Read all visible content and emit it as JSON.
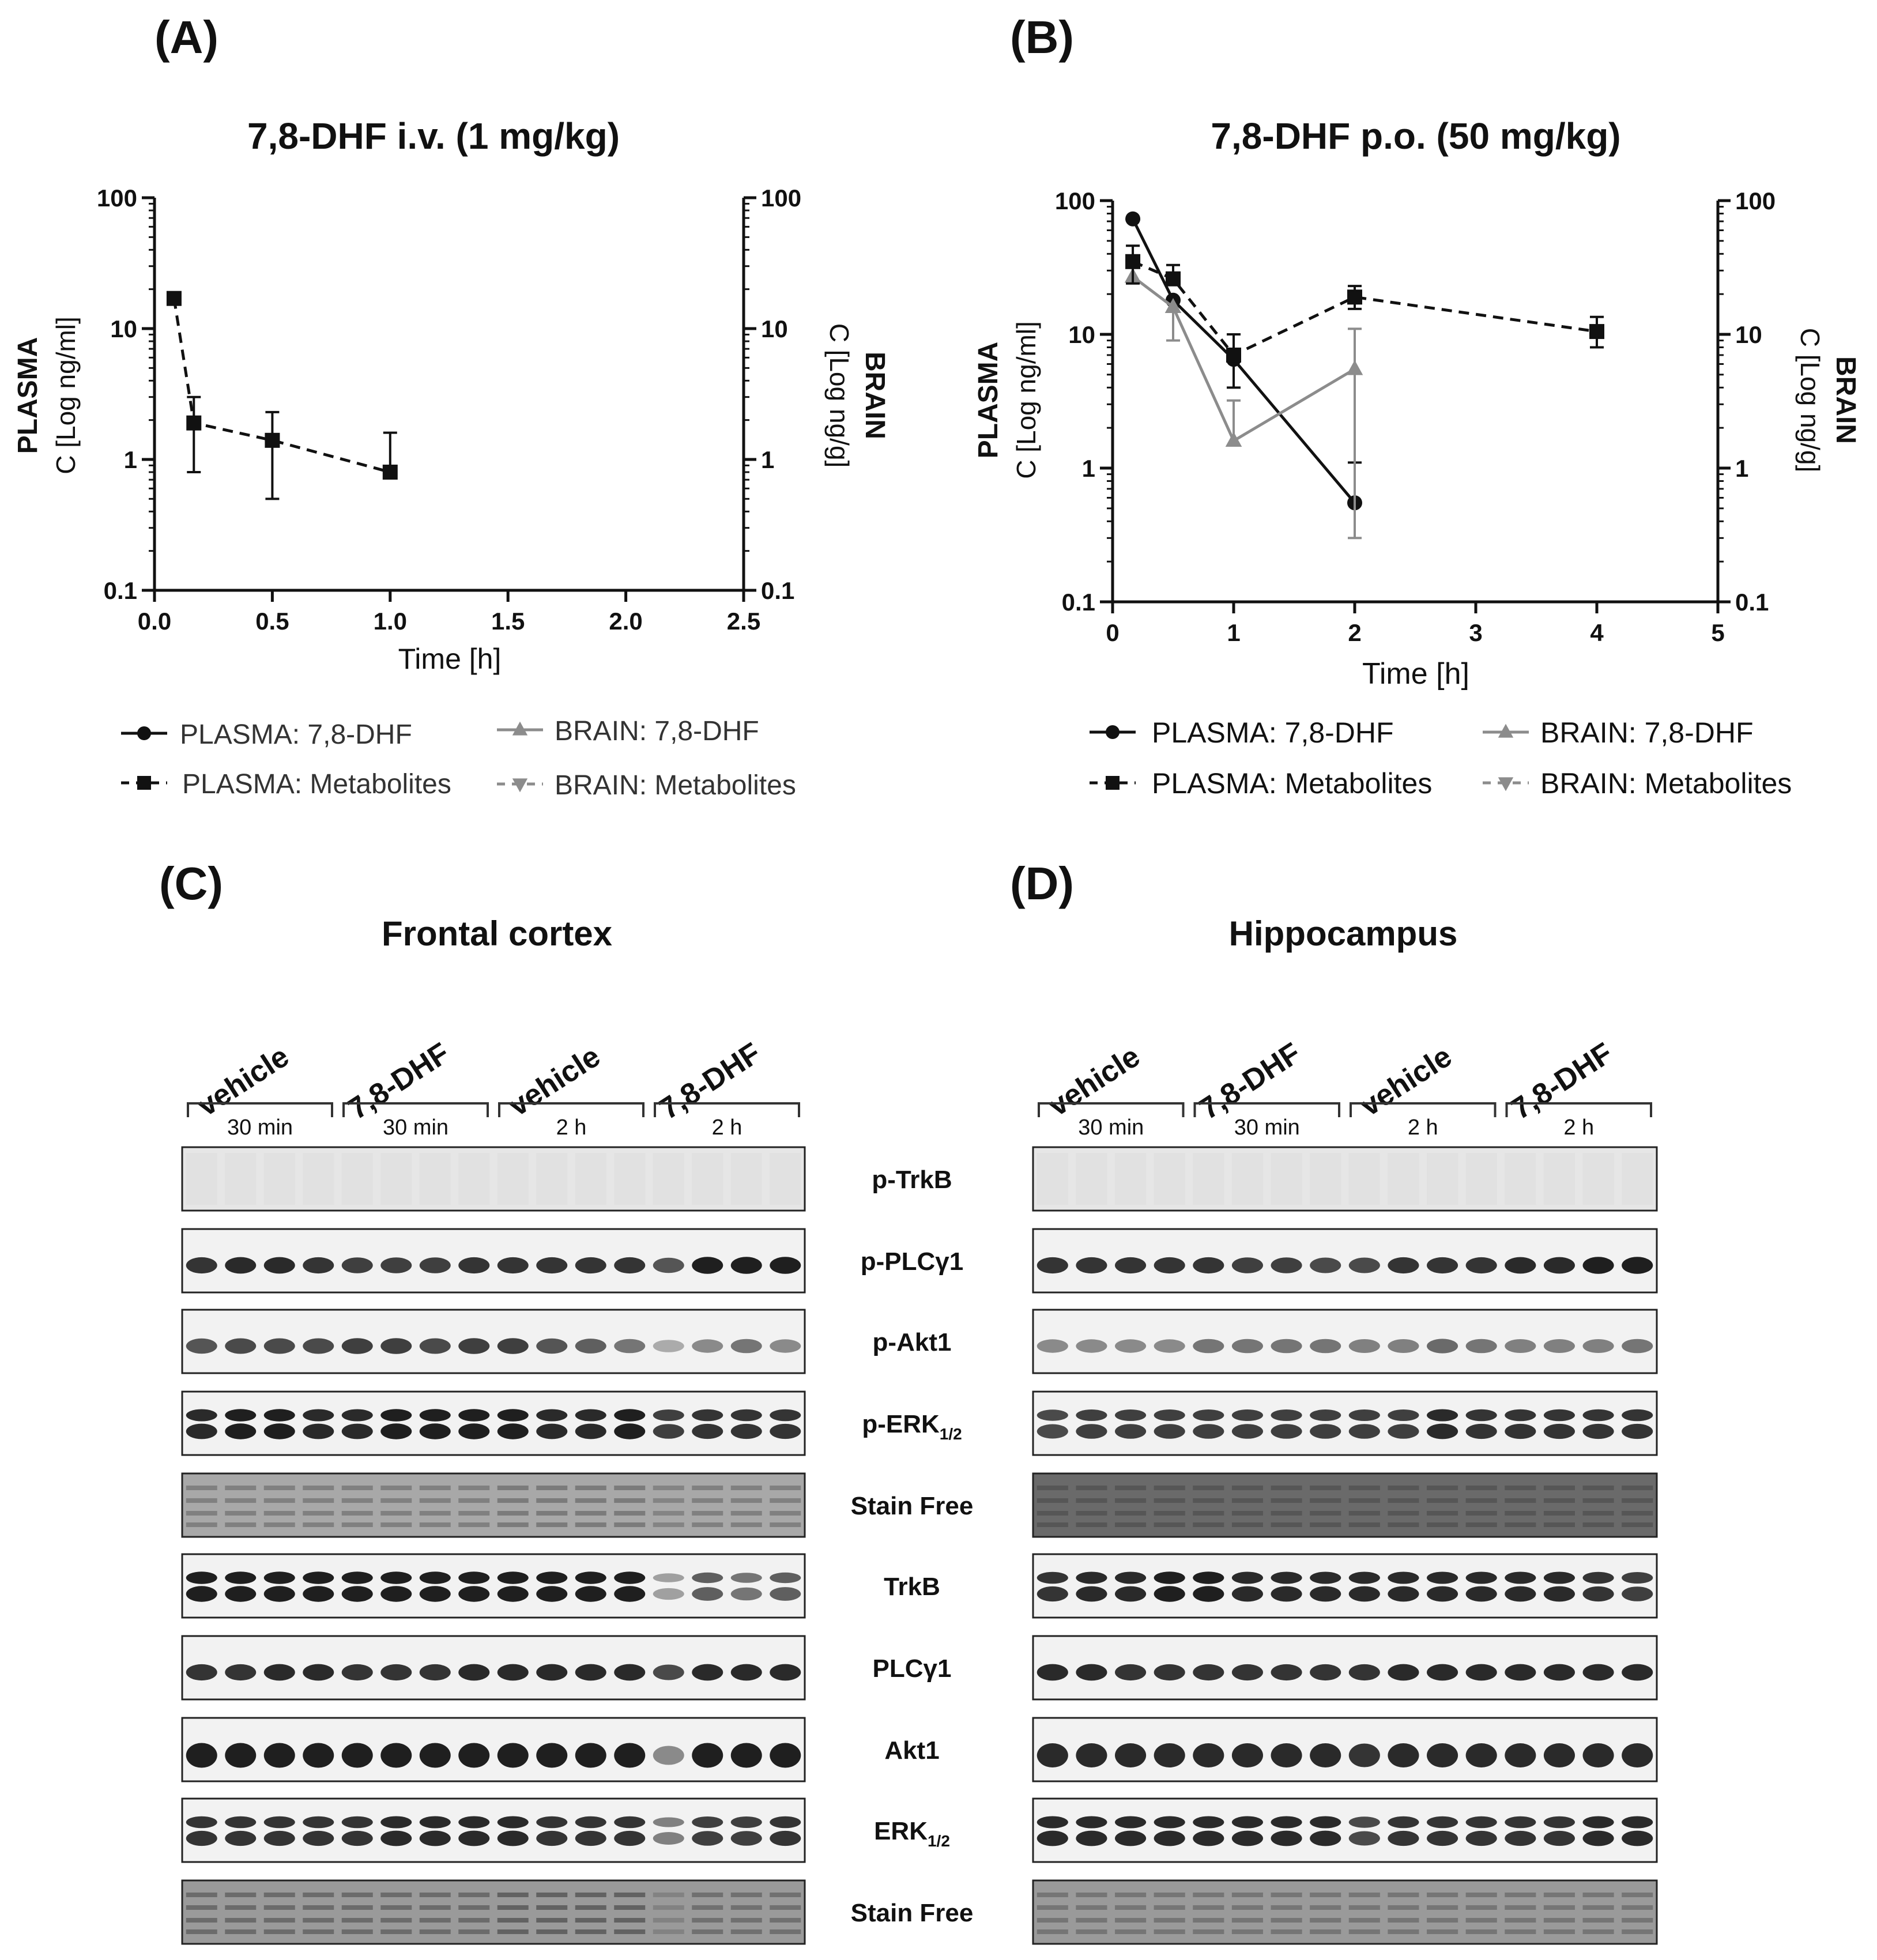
{
  "panels": {
    "A": {
      "letter": "(A)"
    },
    "B": {
      "letter": "(B)"
    },
    "C": {
      "letter": "(C)",
      "title": "Frontal cortex"
    },
    "D": {
      "letter": "(D)",
      "title": "Hippocampus"
    }
  },
  "chart_data": [
    {
      "id": "A",
      "type": "line",
      "title": "7,8-DHF i.v. (1 mg/kg)",
      "xlabel": "Time [h]",
      "ylabel_left": [
        "PLASMA",
        "C [Log ng/ml]"
      ],
      "ylabel_right": [
        "BRAIN",
        "C [Log ng/g]"
      ],
      "yscale": "log",
      "xlim": [
        0,
        2.5
      ],
      "ylim": [
        0.1,
        100
      ],
      "xticks": [
        0.0,
        0.5,
        1.0,
        1.5,
        2.0,
        2.5
      ],
      "xtick_labels": [
        "0.0",
        "0.5",
        "1.0",
        "1.5",
        "2.0",
        "2.5"
      ],
      "yticks": [
        0.1,
        1,
        10,
        100
      ],
      "ytick_labels": [
        "0.1",
        "1",
        "10",
        "100"
      ],
      "series": [
        {
          "name": "PLASMA: Metabolites",
          "style": "dashed",
          "marker": "square",
          "color": "#111111",
          "x": [
            0.083,
            0.167,
            0.5,
            1.0
          ],
          "y": [
            17,
            1.9,
            1.4,
            0.8
          ],
          "err_low": [
            null,
            0.8,
            0.5,
            null
          ],
          "err_high": [
            null,
            3.0,
            2.3,
            1.6
          ]
        }
      ],
      "legend": [
        {
          "label": "PLASMA: 7,8-DHF",
          "style": "solid",
          "marker": "circle",
          "color": "#111111"
        },
        {
          "label": "BRAIN: 7,8-DHF",
          "style": "solid",
          "marker": "triangle-up",
          "color": "#8c8c8c"
        },
        {
          "label": "PLASMA: Metabolites",
          "style": "dashed",
          "marker": "square",
          "color": "#111111"
        },
        {
          "label": "BRAIN: Metabolites",
          "style": "dashed",
          "marker": "triangle-down",
          "color": "#8c8c8c"
        }
      ]
    },
    {
      "id": "B",
      "type": "line",
      "title": "7,8-DHF p.o. (50 mg/kg)",
      "xlabel": "Time [h]",
      "ylabel_left": [
        "PLASMA",
        "C [Log ng/ml]"
      ],
      "ylabel_right": [
        "BRAIN",
        "C [Log ng/g]"
      ],
      "yscale": "log",
      "xlim": [
        0,
        5
      ],
      "ylim": [
        0.1,
        100
      ],
      "xticks": [
        0,
        1,
        2,
        3,
        4,
        5
      ],
      "xtick_labels": [
        "0",
        "1",
        "2",
        "3",
        "4",
        "5"
      ],
      "yticks": [
        0.1,
        1,
        10,
        100
      ],
      "ytick_labels": [
        "0.1",
        "1",
        "10",
        "100"
      ],
      "series": [
        {
          "name": "PLASMA: 7,8-DHF",
          "style": "solid",
          "marker": "circle",
          "color": "#111111",
          "x": [
            0.167,
            0.5,
            1.0,
            2.0
          ],
          "y": [
            73,
            18,
            6.5,
            0.55
          ],
          "err_low": [
            null,
            null,
            null,
            null
          ],
          "err_high": [
            null,
            null,
            null,
            1.1
          ]
        },
        {
          "name": "BRAIN: 7,8-DHF",
          "style": "solid",
          "marker": "triangle-up",
          "color": "#8c8c8c",
          "x": [
            0.167,
            0.5,
            1.0,
            2.0
          ],
          "y": [
            27,
            16,
            1.6,
            5.5
          ],
          "err_low": [
            null,
            9,
            null,
            0.3
          ],
          "err_high": [
            null,
            null,
            3.2,
            11
          ]
        },
        {
          "name": "PLASMA: Metabolites",
          "style": "dashed",
          "marker": "square",
          "color": "#111111",
          "x": [
            0.167,
            0.5,
            1.0,
            2.0,
            4.0
          ],
          "y": [
            35,
            26,
            7,
            19,
            10.5
          ],
          "err_low": [
            24,
            null,
            4,
            15.5,
            8
          ],
          "err_high": [
            46,
            33,
            10,
            23,
            13.5
          ]
        }
      ],
      "legend": [
        {
          "label": "PLASMA: 7,8-DHF",
          "style": "solid",
          "marker": "circle",
          "color": "#111111"
        },
        {
          "label": "BRAIN: 7,8-DHF",
          "style": "solid",
          "marker": "triangle-up",
          "color": "#8c8c8c"
        },
        {
          "label": "PLASMA: Metabolites",
          "style": "dashed",
          "marker": "square",
          "color": "#111111"
        },
        {
          "label": "BRAIN: Metabolites",
          "style": "dashed",
          "marker": "triangle-down",
          "color": "#8c8c8c"
        }
      ]
    }
  ],
  "blots": {
    "groups": [
      {
        "name": "vehicle",
        "time": "30 min"
      },
      {
        "name": "7,8-DHF",
        "time": "30 min"
      },
      {
        "name": "vehicle",
        "time": "2 h"
      },
      {
        "name": "7,8-DHF",
        "time": "2 h"
      }
    ],
    "lanes_per_group": 4,
    "rows": [
      {
        "label": "p-TrkB",
        "sub": "",
        "kind": "blank",
        "C": [
          0,
          0,
          0,
          0,
          0,
          0,
          0,
          0,
          0,
          0,
          0,
          0,
          0,
          0,
          0,
          0
        ],
        "D": [
          0,
          0,
          0,
          0,
          0,
          0,
          0,
          0,
          0,
          0,
          0,
          0,
          0,
          0,
          0,
          0
        ]
      },
      {
        "label": "p-PLCγ1",
        "sub": "",
        "kind": "single",
        "C": [
          0.85,
          0.9,
          0.9,
          0.85,
          0.8,
          0.8,
          0.8,
          0.85,
          0.85,
          0.85,
          0.85,
          0.85,
          0.7,
          0.95,
          0.95,
          0.95
        ],
        "D": [
          0.85,
          0.85,
          0.85,
          0.85,
          0.85,
          0.8,
          0.8,
          0.75,
          0.75,
          0.85,
          0.85,
          0.85,
          0.9,
          0.9,
          0.95,
          0.95
        ]
      },
      {
        "label": "p-Akt1",
        "sub": "",
        "kind": "single",
        "C": [
          0.7,
          0.75,
          0.75,
          0.75,
          0.8,
          0.8,
          0.75,
          0.8,
          0.8,
          0.7,
          0.65,
          0.55,
          0.3,
          0.45,
          0.55,
          0.45
        ],
        "D": [
          0.45,
          0.45,
          0.45,
          0.45,
          0.55,
          0.55,
          0.55,
          0.55,
          0.5,
          0.5,
          0.6,
          0.55,
          0.5,
          0.5,
          0.5,
          0.55
        ]
      },
      {
        "label": "p-ERK",
        "sub": "1/2",
        "kind": "double",
        "C": [
          0.9,
          0.95,
          0.95,
          0.9,
          0.9,
          0.95,
          0.95,
          0.95,
          0.95,
          0.9,
          0.9,
          0.95,
          0.8,
          0.85,
          0.85,
          0.85
        ],
        "D": [
          0.75,
          0.8,
          0.8,
          0.8,
          0.8,
          0.8,
          0.8,
          0.8,
          0.8,
          0.8,
          0.9,
          0.85,
          0.85,
          0.85,
          0.85,
          0.85
        ]
      },
      {
        "label": "Stain Free",
        "sub": "",
        "kind": "stain",
        "C": [
          0.45,
          0.45,
          0.45,
          0.45,
          0.45,
          0.45,
          0.45,
          0.45,
          0.5,
          0.5,
          0.5,
          0.5,
          0.4,
          0.45,
          0.45,
          0.45
        ],
        "D": [
          0.8,
          0.8,
          0.8,
          0.8,
          0.8,
          0.8,
          0.8,
          0.8,
          0.8,
          0.8,
          0.8,
          0.8,
          0.8,
          0.8,
          0.8,
          0.8
        ]
      },
      {
        "label": "TrkB",
        "sub": "",
        "kind": "double",
        "C": [
          0.95,
          0.95,
          0.95,
          0.95,
          0.95,
          0.95,
          0.95,
          0.95,
          0.95,
          0.95,
          0.95,
          0.95,
          0.35,
          0.65,
          0.55,
          0.65
        ],
        "D": [
          0.85,
          0.9,
          0.9,
          0.95,
          0.95,
          0.9,
          0.9,
          0.9,
          0.9,
          0.9,
          0.9,
          0.9,
          0.9,
          0.9,
          0.85,
          0.8
        ]
      },
      {
        "label": "PLCγ1",
        "sub": "",
        "kind": "single",
        "C": [
          0.85,
          0.85,
          0.9,
          0.9,
          0.85,
          0.85,
          0.85,
          0.9,
          0.9,
          0.9,
          0.9,
          0.9,
          0.75,
          0.9,
          0.9,
          0.9
        ],
        "D": [
          0.9,
          0.9,
          0.85,
          0.85,
          0.85,
          0.85,
          0.85,
          0.85,
          0.85,
          0.9,
          0.9,
          0.9,
          0.9,
          0.9,
          0.9,
          0.9
        ]
      },
      {
        "label": "Akt1",
        "sub": "",
        "kind": "thick",
        "C": [
          0.95,
          0.95,
          0.95,
          0.95,
          0.95,
          0.95,
          0.95,
          0.95,
          0.95,
          0.95,
          0.95,
          0.95,
          0.45,
          0.95,
          0.95,
          0.95
        ],
        "D": [
          0.9,
          0.9,
          0.9,
          0.9,
          0.9,
          0.9,
          0.9,
          0.9,
          0.85,
          0.9,
          0.9,
          0.9,
          0.9,
          0.9,
          0.9,
          0.9
        ]
      },
      {
        "label": "ERK",
        "sub": "1/2",
        "kind": "double",
        "C": [
          0.85,
          0.85,
          0.85,
          0.85,
          0.85,
          0.9,
          0.9,
          0.9,
          0.9,
          0.85,
          0.85,
          0.85,
          0.5,
          0.8,
          0.8,
          0.85
        ],
        "D": [
          0.9,
          0.9,
          0.9,
          0.9,
          0.9,
          0.9,
          0.9,
          0.9,
          0.75,
          0.85,
          0.85,
          0.85,
          0.85,
          0.85,
          0.9,
          0.9
        ]
      },
      {
        "label": "Stain Free",
        "sub": "",
        "kind": "stain",
        "C": [
          0.65,
          0.65,
          0.65,
          0.65,
          0.65,
          0.65,
          0.65,
          0.65,
          0.75,
          0.75,
          0.75,
          0.75,
          0.4,
          0.6,
          0.6,
          0.6
        ],
        "D": [
          0.55,
          0.55,
          0.55,
          0.55,
          0.55,
          0.55,
          0.55,
          0.55,
          0.55,
          0.55,
          0.55,
          0.55,
          0.55,
          0.55,
          0.55,
          0.55
        ]
      }
    ]
  }
}
